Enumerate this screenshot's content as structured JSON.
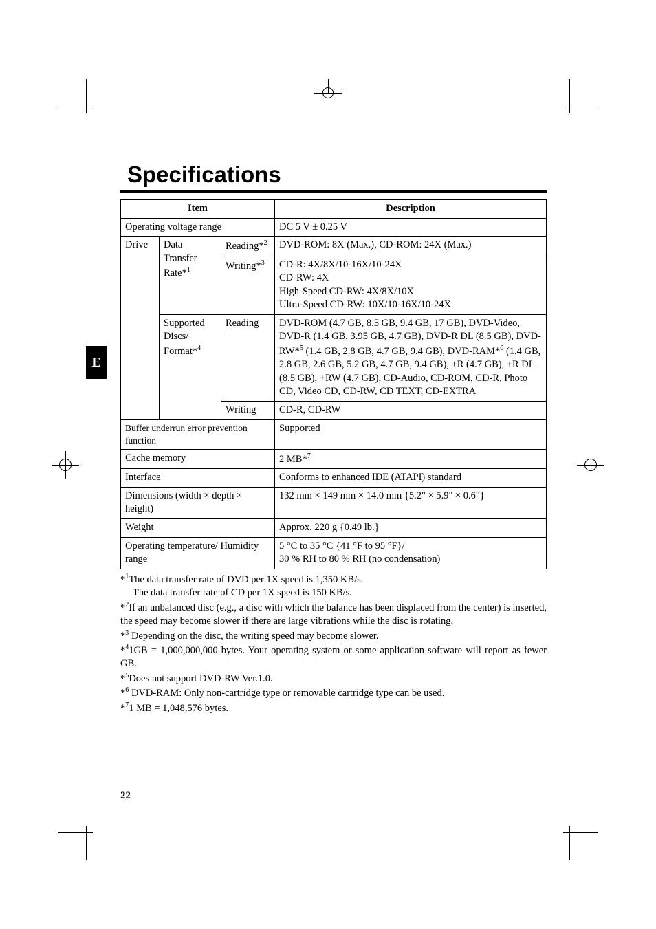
{
  "title": "Specifications",
  "side_tab": "E",
  "page_number": "22",
  "table": {
    "headers": {
      "item": "Item",
      "description": "Description"
    },
    "rows": {
      "voltage": {
        "item": "Operating voltage range",
        "desc": "DC 5 V ± 0.25 V"
      },
      "drive_label": "Drive",
      "data_transfer_label": "Data Transfer Rate*",
      "data_transfer_sup": "1",
      "reading_label": "Reading*",
      "reading_sup": "2",
      "reading_desc": "DVD-ROM: 8X (Max.), CD-ROM: 24X (Max.)",
      "writing_label": "Writing*",
      "writing_sup": "3",
      "writing_desc": "CD-R: 4X/8X/10-16X/10-24X\nCD-RW: 4X\nHigh-Speed CD-RW: 4X/8X/10X\nUltra-Speed CD-RW: 10X/10-16X/10-24X",
      "supported_label": "Supported Discs/ Format*",
      "supported_sup": "4",
      "supported_reading_label": "Reading",
      "supported_reading_pre": "DVD-ROM (4.7 GB, 8.5 GB, 9.4 GB, 17 GB), DVD-Video, DVD-R (1.4 GB, 3.95 GB, 4.7 GB), DVD-R DL (8.5 GB), DVD-RW*",
      "supported_reading_sup1": "5",
      "supported_reading_mid": " (1.4 GB, 2.8 GB, 4.7 GB, 9.4 GB), DVD-RAM*",
      "supported_reading_sup2": "6",
      "supported_reading_post": " (1.4 GB, 2.8 GB, 2.6 GB, 5.2 GB, 4.7 GB, 9.4 GB), +R (4.7 GB), +R DL (8.5 GB), +RW (4.7 GB), CD-Audio, CD-ROM, CD-R, Photo CD, Video CD, CD-RW, CD TEXT, CD-EXTRA",
      "supported_writing_label": "Writing",
      "supported_writing_desc": "CD-R, CD-RW",
      "buffer": {
        "item": "Buffer underrun error prevention function",
        "desc": "Supported"
      },
      "cache": {
        "item": "Cache memory",
        "desc_pre": "2 MB*",
        "desc_sup": "7"
      },
      "interface": {
        "item": "Interface",
        "desc": "Conforms to enhanced IDE (ATAPI) standard"
      },
      "dimensions": {
        "item": "Dimensions (width × depth × height)",
        "desc": "132 mm × 149 mm × 14.0 mm {5.2\" × 5.9\" × 0.6\"}"
      },
      "weight": {
        "item": "Weight",
        "desc": "Approx. 220 g {0.49 lb.}"
      },
      "temp": {
        "item": "Operating temperature/ Humidity range",
        "desc": "5 °C to 35 °C {41 °F to 95 °F}/\n30 % RH to 80 % RH  (no condensation)"
      }
    }
  },
  "footnotes": {
    "f1a": "The data transfer rate of DVD per 1X speed is 1,350 KB/s.",
    "f1b": "The data transfer rate of CD per 1X speed is 150 KB/s.",
    "f2": "If an unbalanced disc (e.g., a disc with which the balance has been displaced from the center) is inserted, the speed may become slower if there are large vibrations while the disc is rotating.",
    "f3": " Depending on the disc, the writing speed may become slower.",
    "f4": "1GB = 1,000,000,000 bytes. Your operating system or some application software will report as fewer GB.",
    "f5": "Does not support DVD-RW Ver.1.0.",
    "f6": " DVD-RAM: Only non-cartridge type or removable cartridge type can be used.",
    "f7": "1 MB = 1,048,576 bytes."
  }
}
